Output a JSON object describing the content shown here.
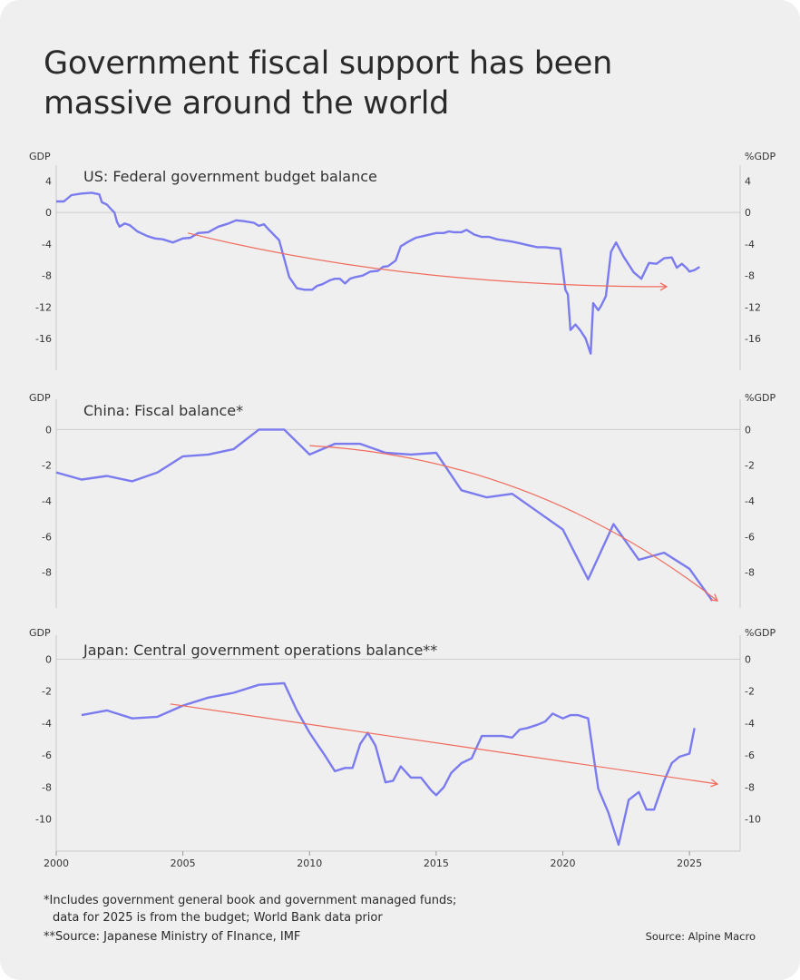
{
  "title_line1": "Government fiscal support has been",
  "title_line2": "massive around the world",
  "footnote_line1": "*Includes government general book and government managed funds;",
  "footnote_line2": "data for 2025 is from the budget; World Bank data prior",
  "footnote_japan": "**Source: Japanese Ministry of FInance, IMF",
  "source": "Source: Alpine Macro",
  "colors": {
    "background": "#efefef",
    "series": "#7b7bf0",
    "trend": "#f06b5c",
    "zero_line": "#cccccc",
    "text": "#2a2a2a"
  },
  "chart_data": [
    {
      "type": "line",
      "title": "US: Federal government budget balance",
      "left_axis_label": "GDP",
      "right_axis_label": "%GDP",
      "ylim": [
        -20,
        6
      ],
      "yticks": [
        4,
        0,
        -4,
        -8,
        -12,
        -16
      ],
      "xlim": [
        2000,
        2027
      ],
      "series": [
        {
          "x": [
            2000,
            2000.3,
            2000.6,
            2001,
            2001.4,
            2001.7,
            2001.8,
            2002,
            2002.2,
            2002.3,
            2002.4,
            2002.5,
            2002.7,
            2002.9,
            2003.2,
            2003.6,
            2003.9,
            2004.2,
            2004.6,
            2005,
            2005.3,
            2005.6,
            2006,
            2006.4,
            2006.8,
            2007.1,
            2007.4,
            2007.8,
            2008.0,
            2008.2,
            2008.4,
            2008.8,
            2009.2,
            2009.5,
            2009.8,
            2010.1,
            2010.3,
            2010.5,
            2010.8,
            2011.0,
            2011.2,
            2011.4,
            2011.6,
            2011.8,
            2012.1,
            2012.4,
            2012.7,
            2012.9,
            2013.1,
            2013.4,
            2013.6,
            2013.9,
            2014.2,
            2014.6,
            2015.0,
            2015.3,
            2015.5,
            2015.7,
            2016.0,
            2016.2,
            2016.5,
            2016.8,
            2017.1,
            2017.4,
            2017.8,
            2018.0,
            2018.3,
            2018.7,
            2019.0,
            2019.3,
            2019.6,
            2019.9,
            2020.1,
            2020.2,
            2020.3,
            2020.5,
            2020.7,
            2020.9,
            2021.1,
            2021.2,
            2021.4,
            2021.5,
            2021.7,
            2021.9,
            2022.1,
            2022.4,
            2022.6,
            2022.8,
            2023.1,
            2023.4,
            2023.7,
            2024.0,
            2024.3,
            2024.5,
            2024.7,
            2024.9,
            2025.0,
            2025.2,
            2025.4
          ],
          "values": [
            1.4,
            1.4,
            2.2,
            2.4,
            2.5,
            2.3,
            1.3,
            1.0,
            0.3,
            0.0,
            -1.2,
            -1.8,
            -1.4,
            -1.6,
            -2.4,
            -3.0,
            -3.3,
            -3.4,
            -3.8,
            -3.3,
            -3.2,
            -2.6,
            -2.5,
            -1.8,
            -1.4,
            -1.0,
            -1.1,
            -1.3,
            -1.7,
            -1.5,
            -2.2,
            -3.5,
            -8.2,
            -9.6,
            -9.8,
            -9.8,
            -9.3,
            -9.1,
            -8.6,
            -8.4,
            -8.4,
            -9.0,
            -8.4,
            -8.2,
            -8.0,
            -7.5,
            -7.4,
            -6.9,
            -6.8,
            -6.1,
            -4.3,
            -3.7,
            -3.2,
            -2.9,
            -2.6,
            -2.6,
            -2.4,
            -2.5,
            -2.5,
            -2.2,
            -2.8,
            -3.1,
            -3.1,
            -3.4,
            -3.6,
            -3.7,
            -3.9,
            -4.2,
            -4.4,
            -4.4,
            -4.5,
            -4.6,
            -9.8,
            -10.4,
            -14.9,
            -14.2,
            -15.0,
            -16.0,
            -17.9,
            -11.5,
            -12.4,
            -11.9,
            -10.6,
            -5.0,
            -3.8,
            -5.6,
            -6.6,
            -7.6,
            -8.4,
            -6.4,
            -6.5,
            -5.8,
            -5.7,
            -7.0,
            -6.5,
            -7.1,
            -7.5,
            -7.3,
            -6.9
          ]
        }
      ],
      "trend": {
        "x": [
          2005.2,
          2024.1
        ],
        "values": [
          -2.6,
          -9.4
        ]
      }
    },
    {
      "type": "line",
      "title": "China: Fiscal balance*",
      "left_axis_label": "GDP",
      "right_axis_label": "%GDP",
      "ylim": [
        -10,
        1.7
      ],
      "yticks": [
        0,
        -2,
        -4,
        -6,
        -8
      ],
      "xlim": [
        2000,
        2027
      ],
      "series": [
        {
          "x": [
            2000,
            2001,
            2002,
            2003,
            2004,
            2005,
            2006,
            2007,
            2008,
            2009,
            2010,
            2011,
            2012,
            2013,
            2014,
            2015,
            2016,
            2017,
            2018,
            2019,
            2020,
            2021,
            2022,
            2023,
            2024,
            2025,
            2025.9
          ],
          "values": [
            -2.4,
            -2.8,
            -2.6,
            -2.9,
            -2.4,
            -1.5,
            -1.4,
            -1.1,
            0.0,
            0.0,
            -1.4,
            -0.8,
            -0.8,
            -1.3,
            -1.4,
            -1.3,
            -3.4,
            -3.8,
            -3.6,
            -4.6,
            -5.6,
            -8.4,
            -5.3,
            -7.3,
            -6.9,
            -7.8,
            -9.6
          ]
        }
      ],
      "trend": {
        "x": [
          2010,
          2026.1
        ],
        "values": [
          -0.9,
          -9.6
        ]
      }
    },
    {
      "type": "line",
      "title": "Japan: Central government operations balance**",
      "left_axis_label": "GDP",
      "right_axis_label": "%GDP",
      "ylim": [
        -12,
        1.5
      ],
      "yticks": [
        0,
        -2,
        -4,
        -6,
        -8,
        -10
      ],
      "xlim": [
        2000,
        2027
      ],
      "xticks": [
        2000,
        2005,
        2010,
        2015,
        2020,
        2025
      ],
      "series": [
        {
          "x": [
            2001,
            2002,
            2003,
            2004,
            2005,
            2006,
            2007,
            2008,
            2009,
            2009.5,
            2010,
            2010.3,
            2010.6,
            2011,
            2011.4,
            2011.7,
            2012,
            2012.3,
            2012.6,
            2013,
            2013.3,
            2013.6,
            2014,
            2014.4,
            2014.8,
            2015,
            2015.3,
            2015.6,
            2016,
            2016.4,
            2016.8,
            2017.2,
            2017.6,
            2018,
            2018.3,
            2018.6,
            2019,
            2019.3,
            2019.6,
            2020.0,
            2020.3,
            2020.6,
            2021.0,
            2021.4,
            2021.8,
            2022.2,
            2022.6,
            2023.0,
            2023.3,
            2023.6,
            2024.0,
            2024.3,
            2024.6,
            2025.0,
            2025.2
          ],
          "values": [
            -3.5,
            -3.2,
            -3.7,
            -3.6,
            -2.9,
            -2.4,
            -2.1,
            -1.6,
            -1.5,
            -3.2,
            -4.6,
            -5.3,
            -6.0,
            -7.0,
            -6.8,
            -6.8,
            -5.3,
            -4.6,
            -5.4,
            -7.7,
            -7.6,
            -6.7,
            -7.4,
            -7.4,
            -8.2,
            -8.5,
            -8.0,
            -7.1,
            -6.5,
            -6.2,
            -4.8,
            -4.8,
            -4.8,
            -4.9,
            -4.4,
            -4.3,
            -4.1,
            -3.9,
            -3.4,
            -3.7,
            -3.5,
            -3.5,
            -3.7,
            -8.1,
            -9.6,
            -11.6,
            -8.8,
            -8.3,
            -9.4,
            -9.4,
            -7.6,
            -6.5,
            -6.1,
            -5.9,
            -4.3
          ]
        }
      ],
      "trend": {
        "x": [
          2004.5,
          2026.1
        ],
        "values": [
          -2.8,
          -7.8
        ]
      }
    }
  ]
}
